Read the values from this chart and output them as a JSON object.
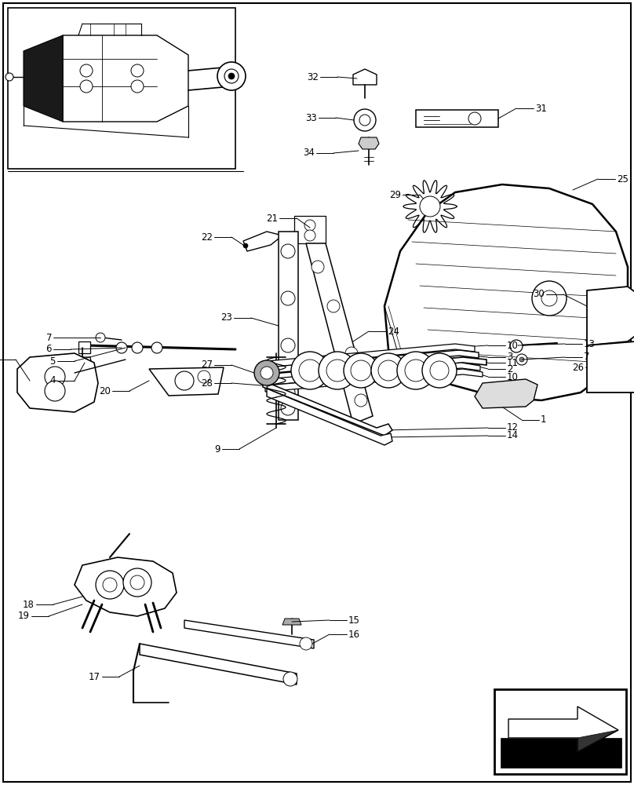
{
  "background_color": "#ffffff",
  "fig_width": 8.08,
  "fig_height": 10.0,
  "dpi": 100
}
